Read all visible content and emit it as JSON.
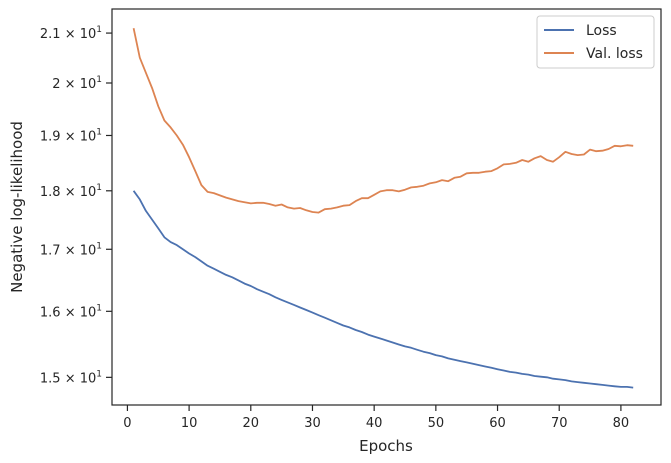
{
  "chart_data": {
    "type": "line",
    "title": "",
    "xlabel": "Epochs",
    "ylabel": "Negative log-likelihood",
    "xlim": [
      -2.5,
      86.5
    ],
    "ylim": [
      14.6,
      21.5
    ],
    "yscale": "log",
    "grid": false,
    "legend_position": "top-right",
    "x_ticks": [
      0,
      10,
      20,
      30,
      40,
      50,
      60,
      70,
      80
    ],
    "y_ticks": [
      {
        "value": 15,
        "mantissa": "1.5",
        "base": "10",
        "exponent": "1"
      },
      {
        "value": 16,
        "mantissa": "1.6",
        "base": "10",
        "exponent": "1"
      },
      {
        "value": 17,
        "mantissa": "1.7",
        "base": "10",
        "exponent": "1"
      },
      {
        "value": 18,
        "mantissa": "1.8",
        "base": "10",
        "exponent": "1"
      },
      {
        "value": 19,
        "mantissa": "1.9",
        "base": "10",
        "exponent": "1"
      },
      {
        "value": 20,
        "mantissa": "2",
        "base": "10",
        "exponent": "1"
      },
      {
        "value": 21,
        "mantissa": "2.1",
        "base": "10",
        "exponent": "1"
      }
    ],
    "x": [
      1,
      2,
      3,
      4,
      5,
      6,
      7,
      8,
      9,
      10,
      11,
      12,
      13,
      14,
      15,
      16,
      17,
      18,
      19,
      20,
      21,
      22,
      23,
      24,
      25,
      26,
      27,
      28,
      29,
      30,
      31,
      32,
      33,
      34,
      35,
      36,
      37,
      38,
      39,
      40,
      41,
      42,
      43,
      44,
      45,
      46,
      47,
      48,
      49,
      50,
      51,
      52,
      53,
      54,
      55,
      56,
      57,
      58,
      59,
      60,
      61,
      62,
      63,
      64,
      65,
      66,
      67,
      68,
      69,
      70,
      71,
      72,
      73,
      74,
      75,
      76,
      77,
      78,
      79,
      80,
      81,
      82
    ],
    "series": [
      {
        "name": "Loss",
        "color": "#4c72b0",
        "values": [
          18.0,
          17.85,
          17.65,
          17.5,
          17.35,
          17.2,
          17.12,
          17.07,
          17.0,
          16.93,
          16.87,
          16.8,
          16.73,
          16.68,
          16.63,
          16.58,
          16.54,
          16.49,
          16.44,
          16.4,
          16.35,
          16.31,
          16.27,
          16.22,
          16.18,
          16.14,
          16.1,
          16.06,
          16.02,
          15.98,
          15.94,
          15.9,
          15.86,
          15.82,
          15.78,
          15.75,
          15.71,
          15.68,
          15.64,
          15.61,
          15.58,
          15.55,
          15.52,
          15.49,
          15.46,
          15.44,
          15.41,
          15.38,
          15.36,
          15.33,
          15.31,
          15.28,
          15.26,
          15.24,
          15.22,
          15.2,
          15.18,
          15.16,
          15.14,
          15.12,
          15.1,
          15.08,
          15.07,
          15.05,
          15.04,
          15.02,
          15.01,
          15.0,
          14.98,
          14.97,
          14.96,
          14.94,
          14.93,
          14.92,
          14.91,
          14.9,
          14.89,
          14.88,
          14.87,
          14.86,
          14.86,
          14.85
        ]
      },
      {
        "name": "Val. loss",
        "color": "#dd8452",
        "values": [
          21.1,
          20.5,
          20.2,
          19.9,
          19.55,
          19.28,
          19.15,
          19.0,
          18.83,
          18.6,
          18.35,
          18.1,
          17.98,
          17.96,
          17.92,
          17.88,
          17.85,
          17.82,
          17.8,
          17.78,
          17.79,
          17.79,
          17.77,
          17.74,
          17.76,
          17.71,
          17.69,
          17.7,
          17.66,
          17.63,
          17.62,
          17.68,
          17.69,
          17.71,
          17.74,
          17.75,
          17.82,
          17.87,
          17.87,
          17.93,
          17.99,
          18.01,
          18.01,
          17.99,
          18.02,
          18.06,
          18.07,
          18.09,
          18.13,
          18.15,
          18.19,
          18.17,
          18.23,
          18.25,
          18.31,
          18.32,
          18.32,
          18.34,
          18.35,
          18.4,
          18.47,
          18.48,
          18.5,
          18.55,
          18.52,
          18.58,
          18.62,
          18.55,
          18.52,
          18.6,
          18.7,
          18.66,
          18.64,
          18.65,
          18.74,
          18.71,
          18.72,
          18.75,
          18.81,
          18.8,
          18.82,
          18.81
        ]
      }
    ]
  }
}
